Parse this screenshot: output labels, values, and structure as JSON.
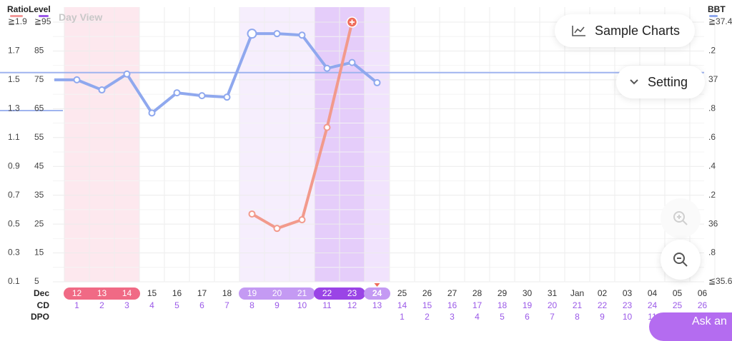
{
  "header": {
    "ratio_label": "Ratio",
    "level_label": "Level",
    "bbt_label": "BBT",
    "view_label": "Day View",
    "ratio_color": "#f29a9a",
    "level_color": "#9b59e8",
    "bbt_color": "#8fa8ee"
  },
  "buttons": {
    "sample_charts": "Sample Charts",
    "setting": "Setting",
    "ask": "Ask an"
  },
  "icons": {
    "sample_charts": "line-chart-icon",
    "setting": "chevron-down-icon",
    "zoom_in": "zoom-in-icon",
    "zoom_out": "zoom-out-icon"
  },
  "axes": {
    "ratio_ticks": [
      "≧1.9",
      "1.7",
      "1.5",
      "1.3",
      "1.1",
      "0.9",
      "0.7",
      "0.5",
      "0.3",
      "0.1"
    ],
    "level_ticks": [
      "≧95",
      "85",
      "75",
      "65",
      "55",
      "45",
      "35",
      "25",
      "15",
      "5"
    ],
    "bbt_ticks": [
      "≧37.4",
      ".2",
      "37",
      ".8",
      ".6",
      ".4",
      ".2",
      "36",
      ".8",
      "≦35.6"
    ]
  },
  "rows": {
    "month_label": "Dec",
    "cd_label": "CD",
    "dpo_label": "DPO"
  },
  "chart_data": {
    "type": "line",
    "dates": [
      "12",
      "13",
      "14",
      "15",
      "16",
      "17",
      "18",
      "19",
      "20",
      "21",
      "22",
      "23",
      "24",
      "25",
      "26",
      "27",
      "28",
      "29",
      "30",
      "31",
      "Jan",
      "02",
      "03",
      "04",
      "05",
      "06"
    ],
    "cd": [
      "1",
      "2",
      "3",
      "4",
      "5",
      "6",
      "7",
      "8",
      "9",
      "10",
      "11",
      "12",
      "13",
      "14",
      "15",
      "16",
      "17",
      "18",
      "19",
      "20",
      "21",
      "22",
      "23",
      "24",
      "25",
      "26"
    ],
    "dpo": [
      "",
      "",
      "",
      "",
      "",
      "",
      "",
      "",
      "",
      "",
      "",
      "",
      "",
      "1",
      "2",
      "3",
      "4",
      "5",
      "6",
      "7",
      "8",
      "9",
      "10",
      "11",
      "",
      ""
    ],
    "period_days": [
      "12",
      "13",
      "14"
    ],
    "fertile_days": [
      "19",
      "20",
      "21"
    ],
    "peak_days": [
      "22",
      "23"
    ],
    "today": "24",
    "bbt_series": {
      "dates": [
        "11",
        "12",
        "13",
        "14",
        "15",
        "16",
        "17",
        "18",
        "19",
        "20",
        "21",
        "22",
        "23",
        "24"
      ],
      "values": [
        37.0,
        37.0,
        36.93,
        37.04,
        36.77,
        36.91,
        36.89,
        36.88,
        37.32,
        37.32,
        37.31,
        37.08,
        37.12,
        36.98
      ]
    },
    "ratio_series": {
      "dates": [
        "19",
        "20",
        "21",
        "22",
        "23"
      ],
      "values": [
        0.57,
        0.47,
        0.53,
        1.17,
        1.9
      ]
    },
    "bbt_coverline": 37.05,
    "ratio_ylim": [
      0.1,
      1.9
    ],
    "level_ylim": [
      5,
      95
    ],
    "bbt_ylim": [
      35.6,
      37.4
    ]
  }
}
